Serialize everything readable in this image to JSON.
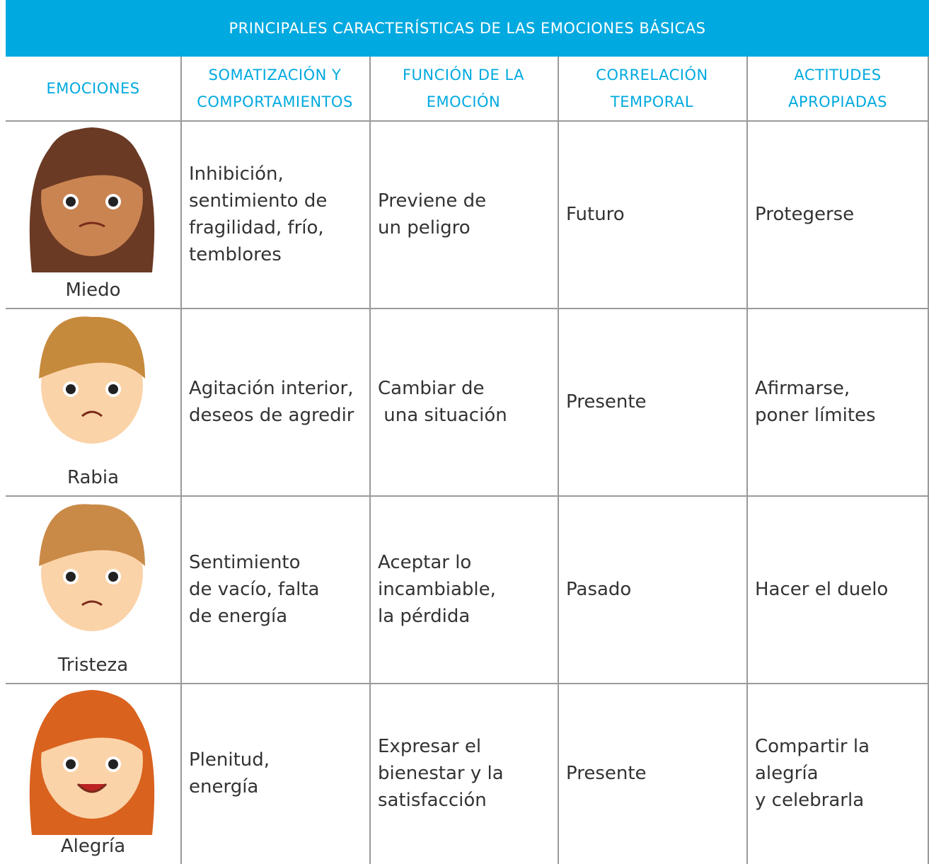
{
  "header": {
    "title": "PRINCIPALES CARACTERÍSTICAS DE LAS EMOCIONES BÁSICAS"
  },
  "table": {
    "columns": [
      [
        "EMOCIONES"
      ],
      [
        "SOMATIZACIÓN Y",
        "COMPORTAMIENTOS"
      ],
      [
        "FUNCIÓN DE LA",
        "EMOCIÓN"
      ],
      [
        "CORRELACIÓN",
        "TEMPORAL"
      ],
      [
        "ACTITUDES",
        "APROPIADAS"
      ]
    ],
    "rows": [
      {
        "emotion": "Miedo",
        "cells": [
          [
            "Inhibición,",
            "sentimiento de",
            "fragilidad, frío,",
            "temblores"
          ],
          [
            "Previene de",
            "un peligro"
          ],
          [
            "Futuro"
          ],
          [
            "Protegerse"
          ]
        ]
      },
      {
        "emotion": "Rabia",
        "cells": [
          [
            "Agitación interior,",
            "deseos de agredir"
          ],
          [
            "Cambiar de",
            " una situación"
          ],
          [
            "Presente"
          ],
          [
            "Afirmarse,",
            "poner límites"
          ]
        ]
      },
      {
        "emotion": "Tristeza",
        "cells": [
          [
            "Sentimiento",
            "de vacío, falta",
            "de energía"
          ],
          [
            "Aceptar lo",
            "incambiable,",
            "la pérdida"
          ],
          [
            "Pasado"
          ],
          [
            "Hacer el duelo"
          ]
        ]
      },
      {
        "emotion": "Alegría",
        "cells": [
          [
            "Plenitud,",
            "energía"
          ],
          [
            "Expresar el",
            "bienestar y la",
            "satisfacción"
          ],
          [
            "Presente"
          ],
          [
            "Compartir la",
            "alegría",
            "y celebrarla"
          ]
        ]
      }
    ]
  }
}
